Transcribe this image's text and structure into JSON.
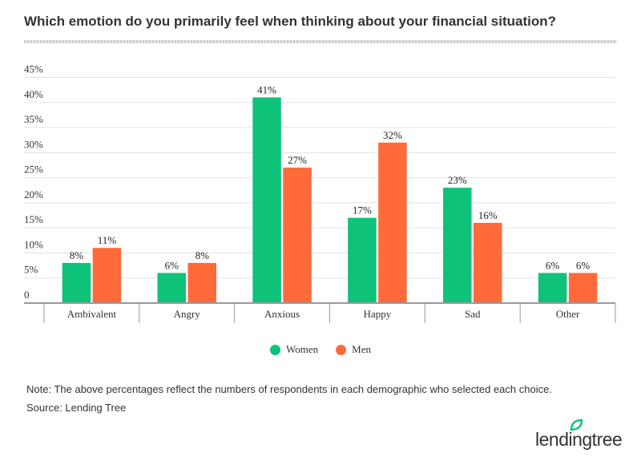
{
  "chart_data": {
    "type": "bar",
    "title": "Which emotion do you primarily feel when thinking about your financial situation?",
    "categories": [
      "Ambivalent",
      "Angry",
      "Anxious",
      "Happy",
      "Sad",
      "Other"
    ],
    "series": [
      {
        "name": "Women",
        "color": "#0fc27a",
        "values": [
          8,
          6,
          41,
          17,
          23,
          6
        ]
      },
      {
        "name": "Men",
        "color": "#ff6a3b",
        "values": [
          11,
          8,
          27,
          32,
          16,
          6
        ]
      }
    ],
    "y_ticks": [
      "0",
      "5%",
      "10%",
      "15%",
      "20%",
      "25%",
      "30%",
      "35%",
      "40%",
      "45%"
    ],
    "ylim": [
      0,
      45
    ],
    "grid": true,
    "legend": "bottom",
    "data_label_suffix": "%"
  },
  "note": "Note: The above percentages reflect the numbers of respondents in each demographic who selected each choice.",
  "source": "Source: Lending Tree",
  "logo": "lendingtree"
}
